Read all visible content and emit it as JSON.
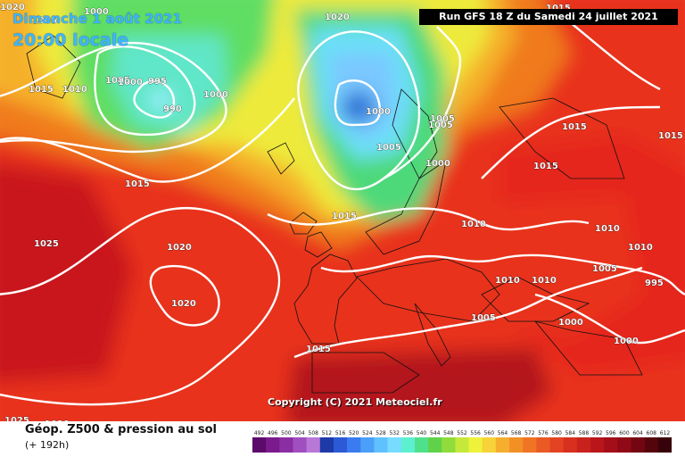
{
  "header": {
    "date": "Dimanche 1 août 2021",
    "time": "20:00 locale",
    "run": "Run GFS 18 Z du Samedi 24 juillet 2021"
  },
  "copyright": "Copyright (C) 2021 Meteociel.fr",
  "footer": {
    "title": "Géop. Z500 & pression au sol",
    "subtitle": "(+ 192h)"
  },
  "legend": {
    "labels": [
      "492",
      "496",
      "500",
      "504",
      "508",
      "512",
      "516",
      "520",
      "524",
      "528",
      "532",
      "536",
      "540",
      "544",
      "548",
      "552",
      "556",
      "560",
      "564",
      "568",
      "572",
      "576",
      "580",
      "584",
      "588",
      "592",
      "596",
      "600",
      "604",
      "608",
      "612"
    ],
    "colors": [
      "#5c0a6b",
      "#7a1a8c",
      "#8c2ea3",
      "#a04ec0",
      "#b977d6",
      "#1d3aa8",
      "#2c5ad6",
      "#3a7cf0",
      "#4aa0f8",
      "#5fc2ff",
      "#77dcff",
      "#5df0d0",
      "#4fe08c",
      "#5fd24a",
      "#8fdc3a",
      "#c6e83a",
      "#eef23a",
      "#f7d238",
      "#f5ae2e",
      "#f29026",
      "#ef7424",
      "#ea5a24",
      "#e34322",
      "#d8301f",
      "#c9221c",
      "#b8161a",
      "#a40e18",
      "#8f0a16",
      "#740612",
      "#56040c",
      "#38020a"
    ]
  },
  "map": {
    "colors": {
      "sea_hot": "#e0251c",
      "orange": "#f5781f",
      "yellow_orange": "#f5b52a",
      "yellow": "#f0ee3c",
      "green": "#46de6a",
      "cyan": "#6ce0f8",
      "light_blue": "#7ac8ff",
      "blue": "#2a74d6",
      "dark_red": "#c9181a"
    },
    "isobar_labels": [
      {
        "text": "1005"
      },
      {
        "text": "1000"
      },
      {
        "text": "995"
      },
      {
        "text": "990"
      },
      {
        "text": "1010"
      },
      {
        "text": "1005"
      },
      {
        "text": "1000"
      },
      {
        "text": "1000"
      },
      {
        "text": "1025"
      },
      {
        "text": "1020"
      },
      {
        "text": "1000"
      },
      {
        "text": "1005"
      },
      {
        "text": "1005"
      },
      {
        "text": "1000"
      },
      {
        "text": "1015"
      },
      {
        "text": "1015"
      },
      {
        "text": "1015"
      },
      {
        "text": "1025"
      },
      {
        "text": "1020"
      },
      {
        "text": "1020"
      },
      {
        "text": "1010"
      },
      {
        "text": "1010"
      },
      {
        "text": "1010"
      },
      {
        "text": "1010"
      },
      {
        "text": "1010"
      },
      {
        "text": "1005"
      },
      {
        "text": "1005"
      },
      {
        "text": "995"
      },
      {
        "text": "1000"
      },
      {
        "text": "1000"
      },
      {
        "text": "1015"
      },
      {
        "text": "1015"
      },
      {
        "text": "1015"
      },
      {
        "text": "1020"
      },
      {
        "text": "1020"
      },
      {
        "text": "1005"
      },
      {
        "text": "1015"
      },
      {
        "text": "1015"
      }
    ]
  }
}
